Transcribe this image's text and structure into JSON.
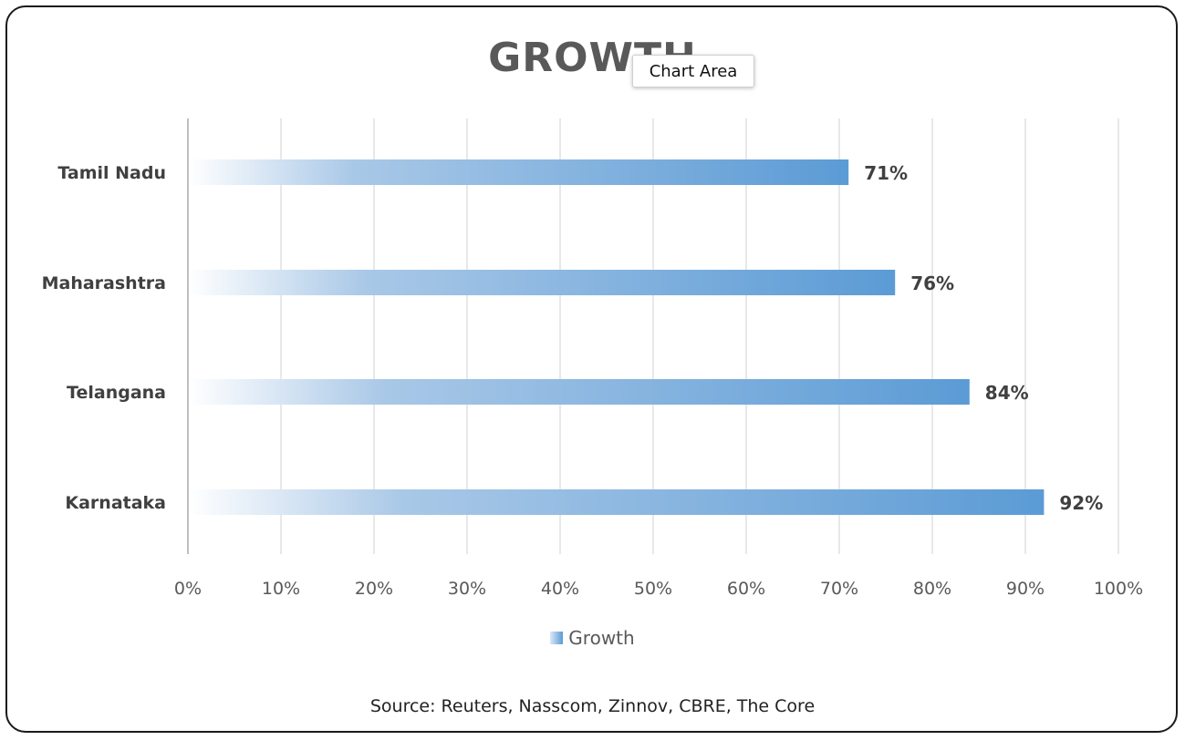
{
  "chart_data": {
    "type": "bar",
    "orientation": "horizontal",
    "title": "GROWTH",
    "categories": [
      "Tamil Nadu",
      "Maharashtra",
      "Telangana",
      "Karnataka"
    ],
    "series": [
      {
        "name": "Growth",
        "values": [
          71,
          76,
          84,
          92
        ]
      }
    ],
    "data_labels": [
      "71%",
      "76%",
      "84%",
      "92%"
    ],
    "xlim": [
      0,
      100
    ],
    "x_ticks": [
      "0%",
      "10%",
      "20%",
      "30%",
      "40%",
      "50%",
      "60%",
      "70%",
      "80%",
      "90%",
      "100%"
    ],
    "grid": "vertical",
    "legend_position": "bottom",
    "bar_color": "#5b9bd5",
    "bar_fill": "gradient"
  },
  "tooltip": {
    "text": "Chart Area"
  },
  "legend": {
    "label": "Growth"
  },
  "footer": {
    "source": "Source: Reuters, Nasscom, Zinnov, CBRE, The Core"
  }
}
